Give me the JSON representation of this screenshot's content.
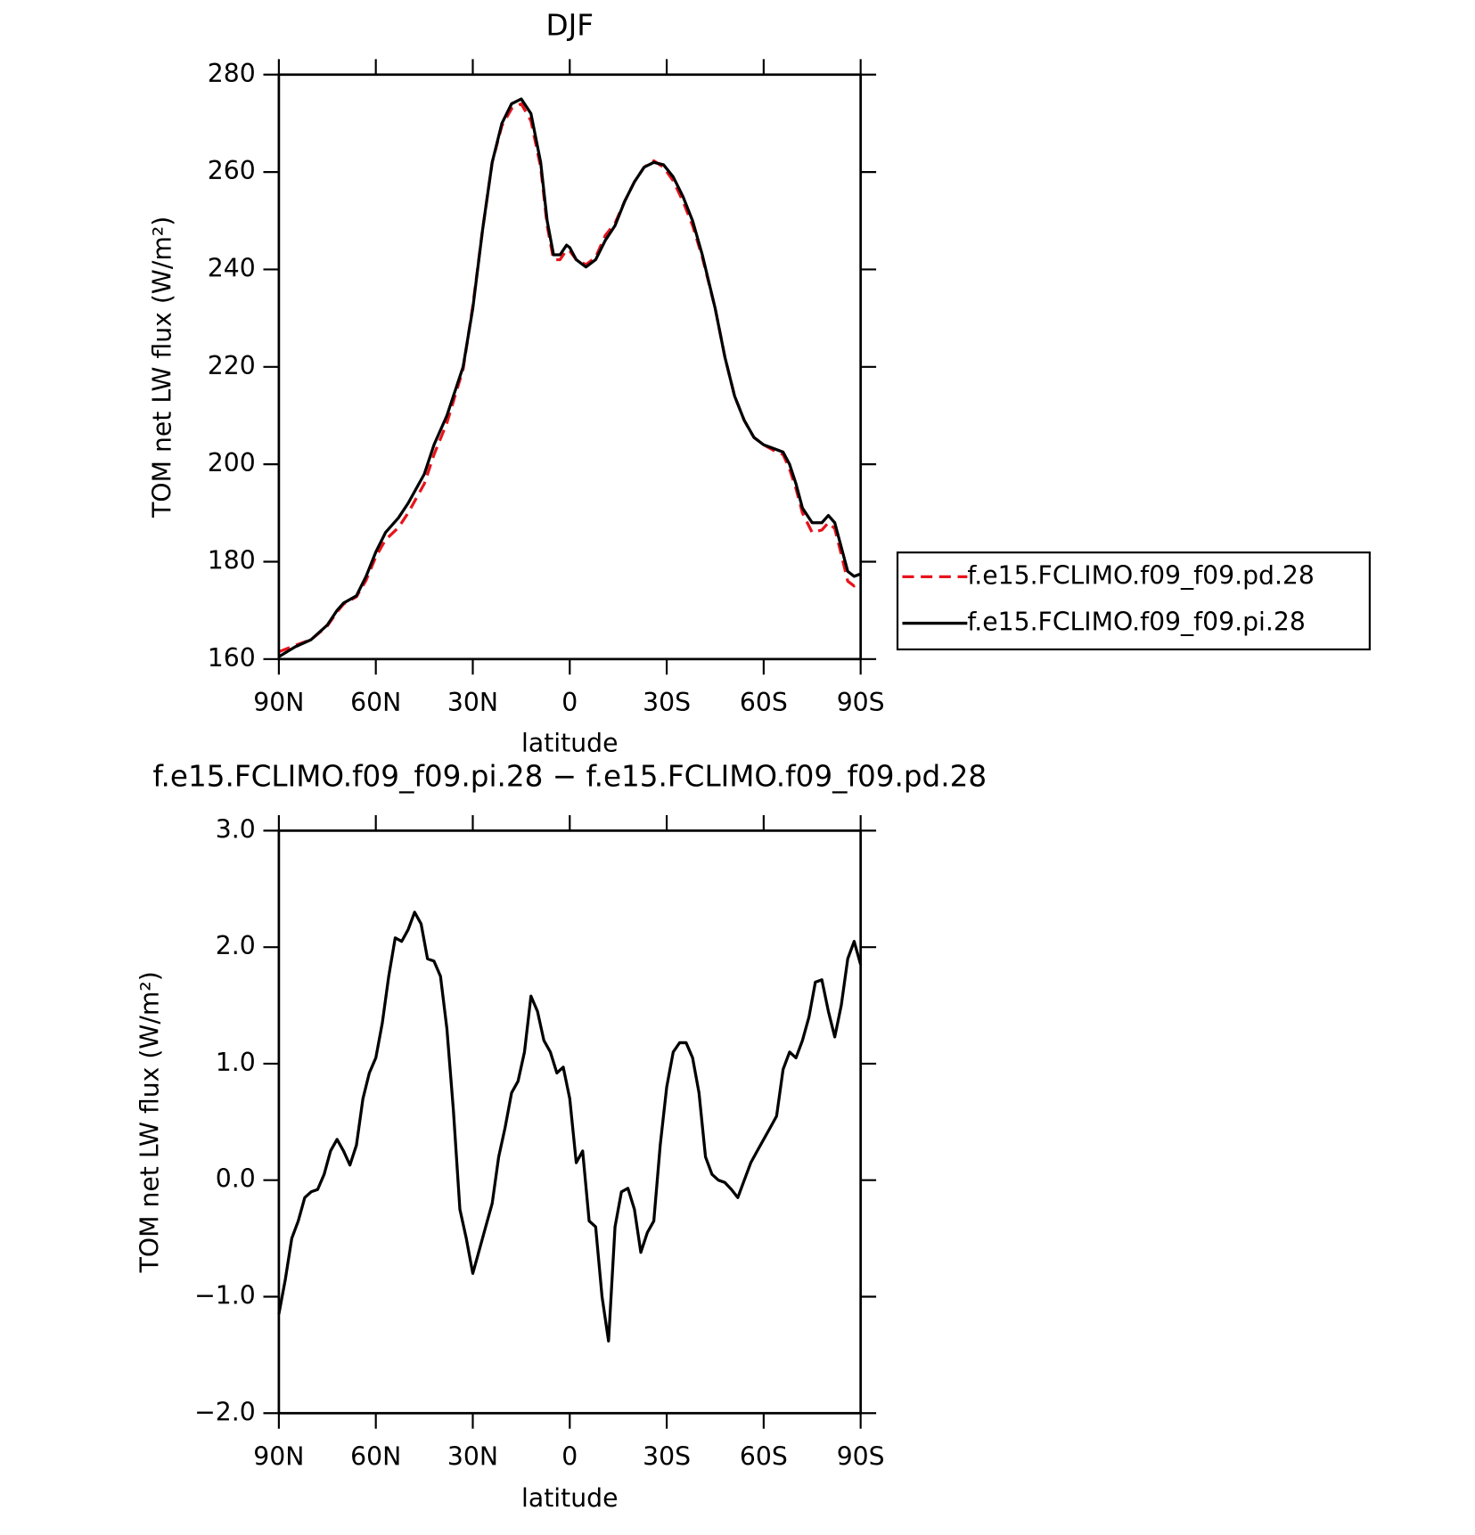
{
  "chart_data": [
    {
      "type": "line",
      "title": "DJF",
      "xlabel": "latitude",
      "ylabel": "TOM net LW flux (W/m²)",
      "x": [
        90,
        85,
        80,
        75,
        72,
        70,
        66,
        63,
        60,
        57,
        53,
        50,
        45,
        42,
        38,
        33,
        30,
        27,
        24,
        21,
        18,
        15,
        12,
        9,
        7,
        5,
        3,
        1,
        0,
        -2,
        -5,
        -8,
        -11,
        -14,
        -17,
        -20,
        -23,
        -26,
        -29,
        -32,
        -35,
        -38,
        -41,
        -45,
        -48,
        -51,
        -54,
        -57,
        -60,
        -64,
        -66,
        -68,
        -70,
        -72,
        -75,
        -78,
        -80,
        -82,
        -84,
        -86,
        -88,
        -90
      ],
      "series": [
        {
          "name": "f.e15.FCLIMO.f09_f09.pd.28",
          "color": "#e8141c",
          "style": "dashed",
          "values": [
            161.5,
            162.8,
            164,
            166.8,
            169.7,
            171.3,
            172.8,
            176.2,
            181,
            184.5,
            187,
            190,
            196,
            202,
            208.5,
            219.5,
            232.5,
            248,
            262,
            269.5,
            273,
            274,
            270.5,
            261,
            249,
            242,
            242,
            244,
            243.8,
            242,
            241,
            242.5,
            247,
            249.5,
            254,
            258,
            261,
            262.3,
            261,
            258.2,
            254,
            249,
            242.5,
            232,
            222,
            214,
            209,
            205.5,
            204,
            202.5,
            202,
            199,
            195,
            190,
            186,
            186.5,
            188,
            186.8,
            181.5,
            176,
            175,
            175.5
          ]
        },
        {
          "name": "f.e15.FCLIMO.f09_f09.pi.28",
          "color": "#000000",
          "style": "solid",
          "values": [
            160.5,
            162.5,
            164,
            167,
            170,
            171.5,
            173,
            177,
            182,
            186,
            189,
            192,
            198,
            204,
            210,
            220,
            232,
            248,
            262,
            270,
            274,
            275,
            272,
            262,
            250,
            243,
            243,
            245,
            244.5,
            242,
            240.5,
            242,
            246,
            249,
            254,
            258,
            261,
            262,
            261.5,
            259,
            255,
            250,
            243,
            232,
            222,
            214,
            209,
            205.5,
            204,
            203,
            202.5,
            200,
            196,
            191,
            188,
            188,
            189.5,
            188,
            183,
            178,
            177,
            177.5
          ]
        }
      ],
      "xlim": [
        90,
        -90
      ],
      "xticks": [
        {
          "value": 90,
          "label": "90N"
        },
        {
          "value": 60,
          "label": "60N"
        },
        {
          "value": 30,
          "label": "30N"
        },
        0,
        {
          "value": -30,
          "label": "30S"
        },
        {
          "value": -60,
          "label": "60S"
        },
        {
          "value": -90,
          "label": "90S"
        }
      ],
      "ylim": [
        160,
        280
      ],
      "yticks": [
        160,
        180,
        200,
        220,
        240,
        260,
        280
      ],
      "grid": false,
      "legend": "outside-right"
    },
    {
      "type": "line",
      "title": "f.e15.FCLIMO.f09_f09.pi.28 − f.e15.FCLIMO.f09_f09.pd.28",
      "xlabel": "latitude",
      "ylabel": "TOM net LW flux (W/m²)",
      "x": [
        90,
        88,
        86,
        84,
        82,
        80,
        78,
        76,
        74,
        72,
        70,
        68,
        66,
        64,
        62,
        60,
        58,
        56,
        54,
        52,
        50,
        48,
        46,
        44,
        42,
        40,
        38,
        36,
        34,
        32,
        30,
        28,
        26,
        24,
        22,
        20,
        18,
        16,
        14,
        12,
        10,
        8,
        6,
        4,
        2,
        0,
        -2,
        -4,
        -6,
        -8,
        -10,
        -12,
        -14,
        -16,
        -18,
        -20,
        -22,
        -24,
        -26,
        -28,
        -30,
        -32,
        -34,
        -36,
        -38,
        -40,
        -42,
        -44,
        -46,
        -48,
        -50,
        -52,
        -54,
        -56,
        -58,
        -60,
        -62,
        -64,
        -66,
        -68,
        -70,
        -72,
        -74,
        -76,
        -78,
        -80,
        -82,
        -84,
        -86,
        -88,
        -90
      ],
      "values": [
        -1.15,
        -0.85,
        -0.5,
        -0.35,
        -0.15,
        -0.1,
        -0.08,
        0.05,
        0.25,
        0.35,
        0.25,
        0.13,
        0.3,
        0.7,
        0.92,
        1.05,
        1.35,
        1.75,
        2.08,
        2.05,
        2.15,
        2.3,
        2.2,
        1.9,
        1.88,
        1.75,
        1.3,
        0.6,
        -0.25,
        -0.5,
        -0.8,
        -0.6,
        -0.4,
        -0.2,
        0.2,
        0.45,
        0.75,
        0.85,
        1.1,
        1.58,
        1.45,
        1.2,
        1.1,
        0.92,
        0.97,
        0.7,
        0.15,
        0.25,
        -0.35,
        -0.4,
        -1.0,
        -1.38,
        -0.4,
        -0.1,
        -0.07,
        -0.25,
        -0.62,
        -0.45,
        -0.35,
        0.3,
        0.8,
        1.1,
        1.18,
        1.18,
        1.05,
        0.75,
        0.2,
        0.05,
        0.0,
        -0.02,
        -0.08,
        -0.15,
        0.0,
        0.15,
        0.25,
        0.35,
        0.45,
        0.55,
        0.95,
        1.1,
        1.05,
        1.2,
        1.4,
        1.7,
        1.72,
        1.45,
        1.23,
        1.5,
        1.9,
        2.05,
        1.85
      ],
      "color": "#000000",
      "xlim": [
        90,
        -90
      ],
      "xticks": [
        {
          "value": 90,
          "label": "90N"
        },
        {
          "value": 60,
          "label": "60N"
        },
        {
          "value": 30,
          "label": "30N"
        },
        0,
        {
          "value": -30,
          "label": "30S"
        },
        {
          "value": -60,
          "label": "60S"
        },
        {
          "value": -90,
          "label": "90S"
        }
      ],
      "ylim": [
        -2,
        3
      ],
      "yticks": [
        {
          "value": -2,
          "label": "−2.0"
        },
        {
          "value": -1,
          "label": "−1.0"
        },
        {
          "value": 0,
          "label": "0.0"
        },
        {
          "value": 1,
          "label": "1.0"
        },
        {
          "value": 2,
          "label": "2.0"
        },
        {
          "value": 3,
          "label": "3.0"
        }
      ],
      "grid": false
    }
  ]
}
